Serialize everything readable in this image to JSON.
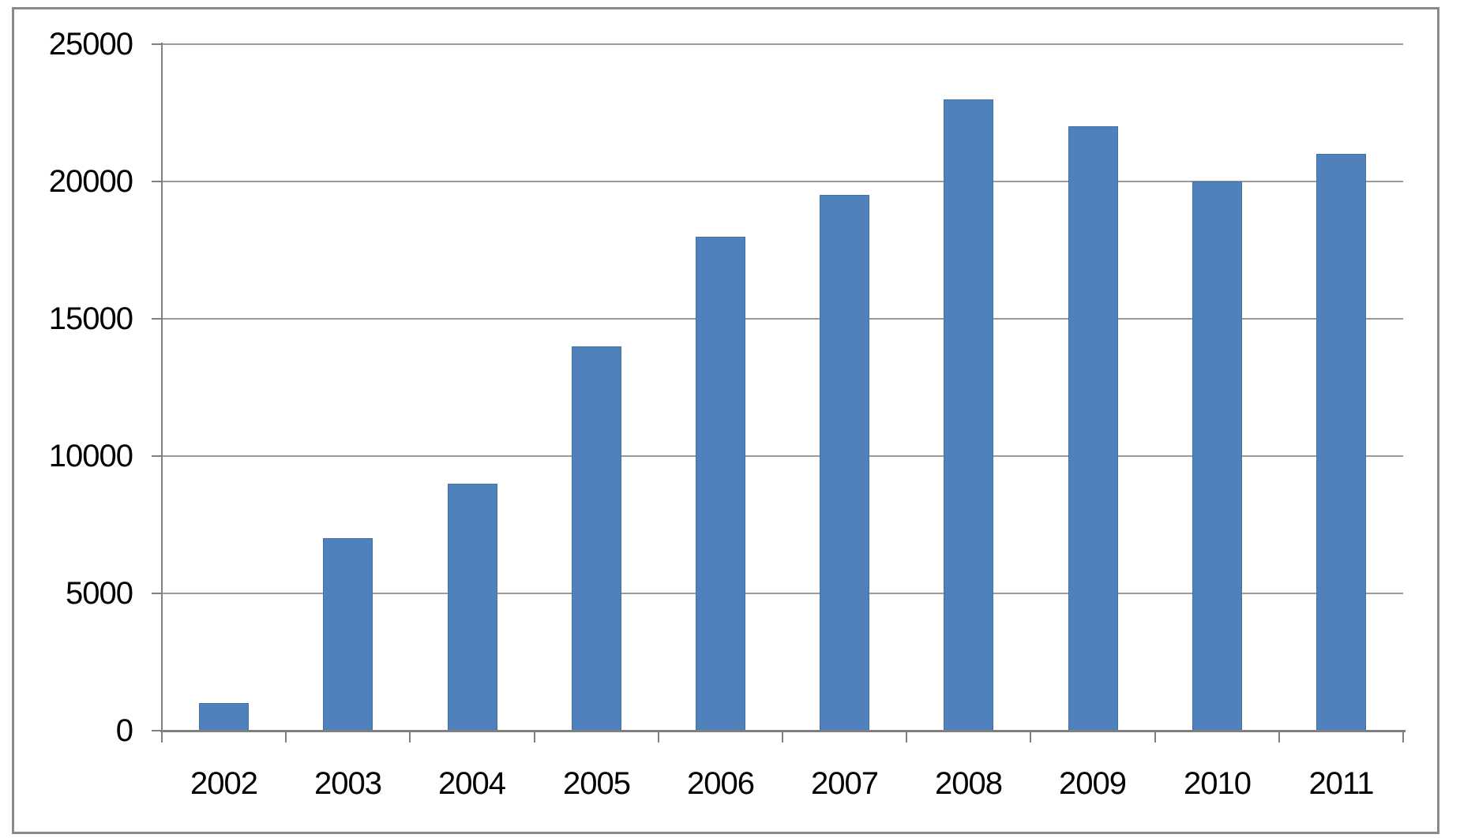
{
  "chart_data": {
    "type": "bar",
    "title": "",
    "xlabel": "",
    "ylabel": "",
    "categories": [
      "2002",
      "2003",
      "2004",
      "2005",
      "2006",
      "2007",
      "2008",
      "2009",
      "2010",
      "2011"
    ],
    "series": [
      {
        "name": "",
        "values": [
          1000,
          7000,
          9000,
          14000,
          18000,
          19500,
          23000,
          22000,
          20000,
          21000
        ]
      }
    ],
    "ylim": [
      0,
      25000
    ],
    "ytick_step": 5000,
    "ytick_labels": [
      "0",
      "5000",
      "10000",
      "15000",
      "20000",
      "25000"
    ],
    "grid": true,
    "legend": false,
    "colors": {
      "bar_fill": "#4f81bd",
      "bar_edge": "#44719f",
      "gridline": "#9a9a9a",
      "axis_line": "#7f7f7f",
      "frame_border": "#8a8a8a",
      "label_text": "#000000",
      "background": "#ffffff"
    }
  }
}
